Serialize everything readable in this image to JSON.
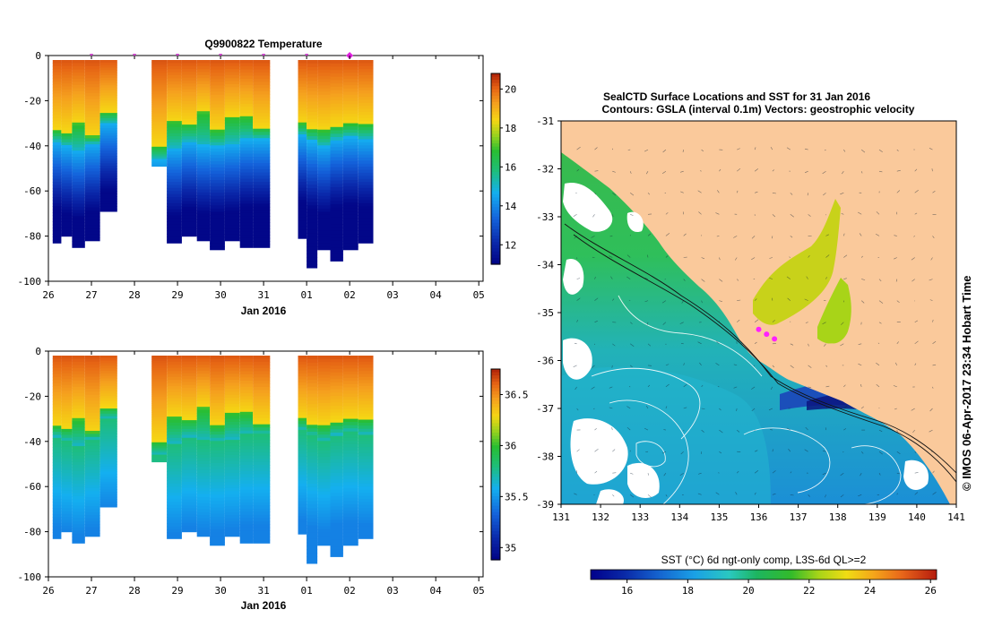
{
  "chart_data": [
    {
      "type": "heatmap",
      "id": "temp",
      "title": "Q9900822  Temperature",
      "xlabel": "Jan 2016",
      "xticks": [
        "26",
        "27",
        "28",
        "29",
        "30",
        "31",
        "01",
        "02",
        "03",
        "04",
        "05"
      ],
      "yticks": [
        "0",
        "-20",
        "-40",
        "-60",
        "-80",
        "-100"
      ],
      "ylim": [
        -100,
        0
      ],
      "colorbar": {
        "min": 11,
        "max": 20.8,
        "ticks": [
          "20",
          "18",
          "16",
          "14",
          "12"
        ],
        "tick_values": [
          20,
          18,
          16,
          14,
          12
        ]
      },
      "profile_markers": [
        27,
        28,
        29,
        30,
        31,
        32
      ],
      "highlight_marker": 33,
      "profiles": [
        {
          "day": 26.1,
          "bottom": -83,
          "mld": -33,
          "cline": -38
        },
        {
          "day": 26.3,
          "bottom": -80,
          "mld": -34,
          "cline": -40
        },
        {
          "day": 26.55,
          "bottom": -85,
          "mld": -30,
          "cline": -42
        },
        {
          "day": 26.85,
          "bottom": -82,
          "mld": -36,
          "cline": -39
        },
        {
          "day": 27.2,
          "bottom": -69,
          "mld": -25,
          "cline": -30
        },
        {
          "day": 28.4,
          "bottom": -49,
          "mld": -40,
          "cline": -46
        },
        {
          "day": 28.75,
          "bottom": -83,
          "mld": -29,
          "cline": -41
        },
        {
          "day": 29.1,
          "bottom": -80,
          "mld": -30,
          "cline": -38
        },
        {
          "day": 29.45,
          "bottom": -82,
          "mld": -25,
          "cline": -40
        },
        {
          "day": 29.75,
          "bottom": -86,
          "mld": -33,
          "cline": -40
        },
        {
          "day": 30.1,
          "bottom": -82,
          "mld": -27,
          "cline": -39
        },
        {
          "day": 30.45,
          "bottom": -85,
          "mld": -27,
          "cline": -37
        },
        {
          "day": 30.75,
          "bottom": -85,
          "mld": -32,
          "cline": -37
        },
        {
          "day": 31.8,
          "bottom": -81,
          "mld": -30,
          "cline": -35
        },
        {
          "day": 32.0,
          "bottom": -94,
          "mld": -32,
          "cline": -38
        },
        {
          "day": 32.25,
          "bottom": -86,
          "mld": -33,
          "cline": -40
        },
        {
          "day": 32.55,
          "bottom": -91,
          "mld": -31,
          "cline": -37
        },
        {
          "day": 32.85,
          "bottom": -86,
          "mld": -30,
          "cline": -36
        },
        {
          "day": 33.2,
          "bottom": -83,
          "mld": -30,
          "cline": -37
        }
      ]
    },
    {
      "type": "heatmap",
      "id": "salt",
      "title": "",
      "xlabel": "Jan 2016",
      "xticks": [
        "26",
        "27",
        "28",
        "29",
        "30",
        "31",
        "01",
        "02",
        "03",
        "04",
        "05"
      ],
      "yticks": [
        "0",
        "-20",
        "-40",
        "-60",
        "-80",
        "-100"
      ],
      "ylim": [
        -100,
        0
      ],
      "colorbar": {
        "min": 34.88,
        "max": 36.75,
        "ticks": [
          "36.5",
          "36",
          "35.5",
          "35"
        ],
        "tick_values": [
          36.5,
          36,
          35.5,
          35
        ]
      },
      "profiles": [
        {
          "day": 26.1,
          "bottom": -83,
          "mld": -33,
          "cline": -38
        },
        {
          "day": 26.3,
          "bottom": -80,
          "mld": -34,
          "cline": -40
        },
        {
          "day": 26.55,
          "bottom": -85,
          "mld": -30,
          "cline": -42
        },
        {
          "day": 26.85,
          "bottom": -82,
          "mld": -36,
          "cline": -39
        },
        {
          "day": 27.2,
          "bottom": -69,
          "mld": -25,
          "cline": -30
        },
        {
          "day": 28.4,
          "bottom": -49,
          "mld": -40,
          "cline": -46
        },
        {
          "day": 28.75,
          "bottom": -83,
          "mld": -29,
          "cline": -41
        },
        {
          "day": 29.1,
          "bottom": -80,
          "mld": -30,
          "cline": -38
        },
        {
          "day": 29.45,
          "bottom": -82,
          "mld": -25,
          "cline": -40
        },
        {
          "day": 29.75,
          "bottom": -86,
          "mld": -33,
          "cline": -40
        },
        {
          "day": 30.1,
          "bottom": -82,
          "mld": -27,
          "cline": -39
        },
        {
          "day": 30.45,
          "bottom": -85,
          "mld": -27,
          "cline": -37
        },
        {
          "day": 30.75,
          "bottom": -85,
          "mld": -32,
          "cline": -37
        },
        {
          "day": 31.8,
          "bottom": -81,
          "mld": -30,
          "cline": -35
        },
        {
          "day": 32.0,
          "bottom": -94,
          "mld": -32,
          "cline": -38
        },
        {
          "day": 32.25,
          "bottom": -86,
          "mld": -33,
          "cline": -40
        },
        {
          "day": 32.55,
          "bottom": -91,
          "mld": -31,
          "cline": -37
        },
        {
          "day": 32.85,
          "bottom": -86,
          "mld": -30,
          "cline": -36
        },
        {
          "day": 33.2,
          "bottom": -83,
          "mld": -30,
          "cline": -37
        }
      ]
    },
    {
      "type": "heatmap",
      "id": "map",
      "title": "SealCTD Surface Locations and SST for 31 Jan 2016",
      "subtitle": "Contours: GSLA (interval 0.1m) Vectors: geostrophic velocity",
      "xticks": [
        "131",
        "132",
        "133",
        "134",
        "135",
        "136",
        "137",
        "138",
        "139",
        "140",
        "141"
      ],
      "yticks": [
        "-31",
        "-32",
        "-33",
        "-34",
        "-35",
        "-36",
        "-37",
        "-38",
        "-39"
      ],
      "xlim": [
        131,
        141
      ],
      "ylim": [
        -39,
        -31
      ],
      "colorbar_label": "SST (°C) 6d ngt-only comp, L3S-6d QL>=2",
      "colorbar": {
        "min": 14.8,
        "max": 26.2,
        "ticks": [
          "16",
          "18",
          "20",
          "22",
          "24",
          "26"
        ],
        "tick_values": [
          16,
          18,
          20,
          22,
          24,
          26
        ]
      },
      "seal_track": [
        [
          136.0,
          -35.35
        ],
        [
          136.2,
          -35.45
        ],
        [
          136.4,
          -35.55
        ]
      ],
      "side_label": "© IMOS 06-Apr-2017 23:34 Hobart Time"
    }
  ]
}
